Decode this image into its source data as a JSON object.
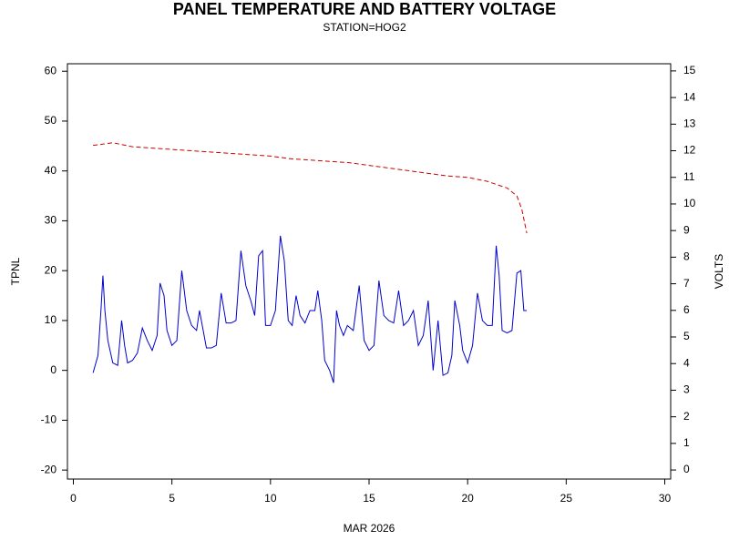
{
  "chart_data": {
    "type": "line",
    "title": "PANEL TEMPERATURE AND BATTERY VOLTAGE",
    "subtitle": "STATION=HOG2",
    "xlabel": "MAR 2026",
    "ylabel": "TPNL",
    "y2label": "VOLTS",
    "xlim": [
      -0.3,
      30.3
    ],
    "xticks": [
      0,
      5,
      10,
      15,
      20,
      25,
      30
    ],
    "ylim": [
      -21.8,
      61.5
    ],
    "yticks": [
      -20,
      -10,
      0,
      10,
      20,
      30,
      40,
      50,
      60
    ],
    "y2lim": [
      -0.34,
      15.27
    ],
    "y2ticks": [
      0,
      1,
      2,
      3,
      4,
      5,
      6,
      7,
      8,
      9,
      10,
      11,
      12,
      13,
      14,
      15
    ],
    "series": [
      {
        "color": "#0000cc",
        "dash": false,
        "x": [
          1.0,
          1.25,
          1.4,
          1.5,
          1.6,
          1.75,
          2.0,
          2.25,
          2.45,
          2.6,
          2.75,
          3.0,
          3.25,
          3.5,
          3.75,
          4.0,
          4.25,
          4.4,
          4.6,
          4.75,
          5.0,
          5.25,
          5.5,
          5.75,
          6.0,
          6.25,
          6.4,
          6.75,
          7.0,
          7.25,
          7.5,
          7.75,
          8.0,
          8.25,
          8.5,
          8.75,
          9.0,
          9.2,
          9.4,
          9.6,
          9.75,
          10.0,
          10.25,
          10.5,
          10.7,
          10.9,
          11.1,
          11.3,
          11.5,
          11.75,
          12.0,
          12.25,
          12.4,
          12.6,
          12.75,
          13.0,
          13.2,
          13.35,
          13.5,
          13.7,
          13.9,
          14.2,
          14.5,
          14.75,
          15.0,
          15.25,
          15.5,
          15.75,
          16.0,
          16.25,
          16.5,
          16.75,
          17.0,
          17.25,
          17.5,
          17.75,
          18.0,
          18.25,
          18.5,
          18.75,
          19.0,
          19.2,
          19.35,
          19.6,
          19.75,
          20.0,
          20.25,
          20.5,
          20.75,
          21.0,
          21.25,
          21.45,
          21.6,
          21.75,
          22.0,
          22.25,
          22.5,
          22.7,
          22.85,
          23.0
        ],
        "values": [
          -0.5,
          3,
          12,
          19,
          12,
          6,
          1.5,
          1,
          10,
          5,
          1.5,
          2,
          3.5,
          8.5,
          6,
          4,
          7,
          17.5,
          15,
          8,
          5,
          6,
          20,
          12,
          9,
          8,
          12,
          4.5,
          4.5,
          5,
          15.5,
          9.5,
          9.5,
          10,
          24,
          17,
          14,
          11,
          23,
          24,
          9,
          9,
          12,
          27,
          22,
          10,
          9,
          15,
          11,
          9.5,
          12,
          12,
          16,
          10,
          2,
          0,
          -2.5,
          12,
          9,
          7,
          9,
          8,
          17,
          6,
          4,
          5,
          18,
          11,
          10,
          9.5,
          16,
          9,
          10,
          12,
          5,
          7,
          14,
          0,
          10,
          -1,
          -0.5,
          3,
          14,
          9,
          4,
          1.5,
          5,
          15.5,
          10,
          9,
          9,
          25,
          19,
          8,
          7.5,
          8,
          19.5,
          20,
          12,
          12
        ]
      },
      {
        "color": "#cc0000",
        "dash": true,
        "axis": "y2",
        "x": [
          1.0,
          2.0,
          3.0,
          4.0,
          5.0,
          6.0,
          7.0,
          8.0,
          9.0,
          10.0,
          11.0,
          12.0,
          13.0,
          14.0,
          15.0,
          16.0,
          17.0,
          18.0,
          19.0,
          20.0,
          21.0,
          22.0,
          22.5,
          22.75,
          23.0
        ],
        "values": [
          12.2,
          12.3,
          12.15,
          12.1,
          12.05,
          12.0,
          11.95,
          11.9,
          11.85,
          11.8,
          11.7,
          11.65,
          11.6,
          11.55,
          11.45,
          11.35,
          11.25,
          11.15,
          11.05,
          11.0,
          10.85,
          10.6,
          10.3,
          9.8,
          8.9
        ]
      }
    ]
  }
}
